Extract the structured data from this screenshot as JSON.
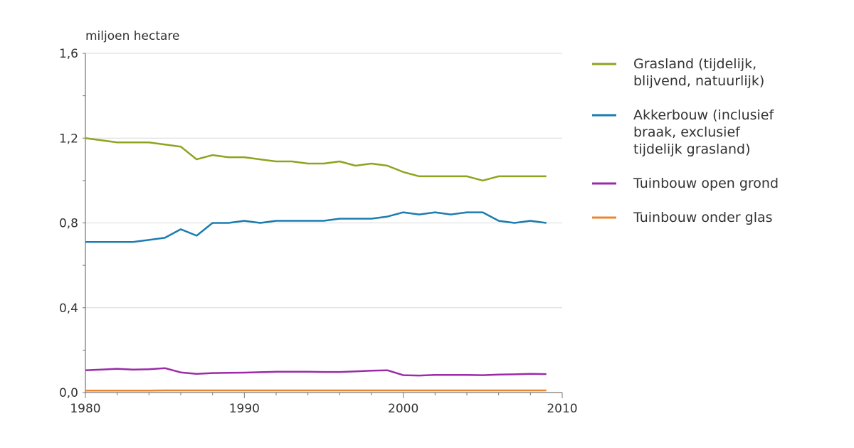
{
  "chart_data": {
    "type": "line",
    "ylabel": "miljoen hectare",
    "xlim": [
      1980,
      2010
    ],
    "ylim": [
      0,
      1.6
    ],
    "x_ticks": [
      1980,
      1990,
      2000,
      2010
    ],
    "x_tick_labels": [
      "1980",
      "1990",
      "2000",
      "2010"
    ],
    "y_ticks": [
      0,
      0.4,
      0.8,
      1.2,
      1.6
    ],
    "y_tick_labels": [
      "0,0",
      "0,4",
      "0,8",
      "1,2",
      "1,6"
    ],
    "grid": "horizontal",
    "legend_position": "right",
    "x": [
      1980,
      1981,
      1982,
      1983,
      1984,
      1985,
      1986,
      1987,
      1988,
      1989,
      1990,
      1991,
      1992,
      1993,
      1994,
      1995,
      1996,
      1997,
      1998,
      1999,
      2000,
      2001,
      2002,
      2003,
      2004,
      2005,
      2006,
      2007,
      2008,
      2009
    ],
    "series": [
      {
        "name": "Grasland (tijdelijk, blijvend, natuurlijk)",
        "legend_lines": [
          "Grasland (tijdelijk,",
          "blijvend, natuurlijk)"
        ],
        "color": "#8fa31e",
        "values": [
          1.2,
          1.19,
          1.18,
          1.18,
          1.18,
          1.17,
          1.16,
          1.1,
          1.12,
          1.11,
          1.11,
          1.1,
          1.09,
          1.09,
          1.08,
          1.08,
          1.09,
          1.07,
          1.08,
          1.07,
          1.04,
          1.02,
          1.02,
          1.02,
          1.02,
          1.0,
          1.02,
          1.02,
          1.02,
          1.02
        ]
      },
      {
        "name": "Akkerbouw (inclusief braak, exclusief tijdelijk grasland)",
        "legend_lines": [
          "Akkerbouw (inclusief",
          "braak, exclusief",
          "tijdelijk grasland)"
        ],
        "color": "#1a7db0",
        "values": [
          0.71,
          0.71,
          0.71,
          0.71,
          0.72,
          0.73,
          0.77,
          0.74,
          0.8,
          0.8,
          0.81,
          0.8,
          0.81,
          0.81,
          0.81,
          0.81,
          0.82,
          0.82,
          0.82,
          0.83,
          0.85,
          0.84,
          0.85,
          0.84,
          0.85,
          0.85,
          0.81,
          0.8,
          0.81,
          0.8
        ]
      },
      {
        "name": "Tuinbouw open grond",
        "legend_lines": [
          "Tuinbouw open grond"
        ],
        "color": "#9b2ba8",
        "values": [
          0.105,
          0.108,
          0.112,
          0.108,
          0.11,
          0.115,
          0.095,
          0.088,
          0.092,
          0.093,
          0.094,
          0.096,
          0.098,
          0.098,
          0.098,
          0.097,
          0.097,
          0.1,
          0.103,
          0.105,
          0.082,
          0.08,
          0.083,
          0.083,
          0.083,
          0.082,
          0.085,
          0.086,
          0.088,
          0.087
        ]
      },
      {
        "name": "Tuinbouw onder glas",
        "legend_lines": [
          "Tuinbouw onder glas"
        ],
        "color": "#e8872e",
        "values": [
          0.009,
          0.009,
          0.009,
          0.009,
          0.009,
          0.01,
          0.01,
          0.01,
          0.01,
          0.01,
          0.01,
          0.01,
          0.01,
          0.01,
          0.01,
          0.01,
          0.01,
          0.01,
          0.01,
          0.01,
          0.01,
          0.01,
          0.01,
          0.01,
          0.01,
          0.01,
          0.01,
          0.01,
          0.01,
          0.01
        ]
      }
    ]
  }
}
